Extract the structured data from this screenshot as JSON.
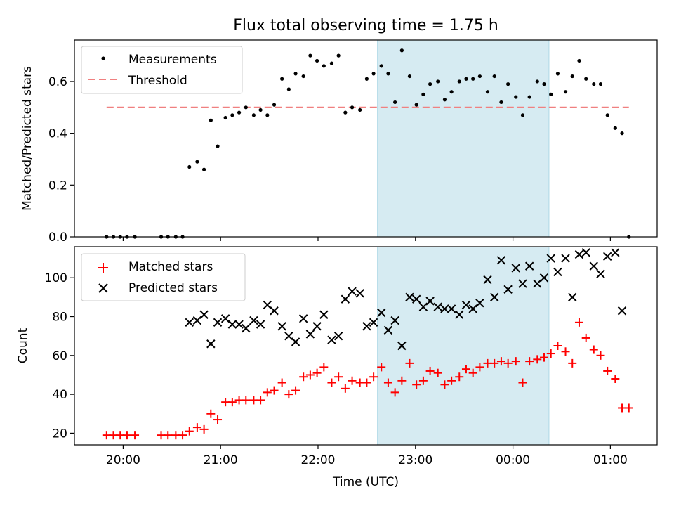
{
  "chart_data": [
    {
      "type": "scatter",
      "title": "Flux total observing time = 1.75 h",
      "ylabel": "Matched/Predicted stars",
      "xlabel": "",
      "ylim": [
        0,
        0.76
      ],
      "yticks": [
        "0.0",
        "0.2",
        "0.4",
        "0.6"
      ],
      "legend": {
        "placement": "top-left",
        "entries": [
          "Measurements",
          "Threshold"
        ]
      },
      "threshold": {
        "name": "Threshold",
        "value": 0.5,
        "color": "#f08080"
      },
      "series": [
        {
          "name": "Measurements",
          "color": "#000000",
          "points": [
            [
              1.33,
              0.0
            ],
            [
              1.4,
              0.0
            ],
            [
              1.47,
              0.0
            ],
            [
              1.54,
              0.0
            ],
            [
              1.62,
              0.0
            ],
            [
              1.89,
              0.0
            ],
            [
              1.96,
              0.0
            ],
            [
              2.04,
              0.0
            ],
            [
              2.11,
              0.0
            ],
            [
              2.18,
              0.27
            ],
            [
              2.26,
              0.29
            ],
            [
              2.33,
              0.26
            ],
            [
              2.4,
              0.45
            ],
            [
              2.47,
              0.35
            ],
            [
              2.55,
              0.46
            ],
            [
              2.62,
              0.47
            ],
            [
              2.69,
              0.48
            ],
            [
              2.76,
              0.5
            ],
            [
              2.84,
              0.47
            ],
            [
              2.91,
              0.49
            ],
            [
              2.98,
              0.47
            ],
            [
              3.05,
              0.51
            ],
            [
              3.13,
              0.61
            ],
            [
              3.2,
              0.57
            ],
            [
              3.27,
              0.63
            ],
            [
              3.35,
              0.62
            ],
            [
              3.42,
              0.7
            ],
            [
              3.49,
              0.68
            ],
            [
              3.56,
              0.66
            ],
            [
              3.64,
              0.67
            ],
            [
              3.71,
              0.7
            ],
            [
              3.78,
              0.48
            ],
            [
              3.85,
              0.5
            ],
            [
              3.93,
              0.49
            ],
            [
              4.0,
              0.61
            ],
            [
              4.07,
              0.63
            ],
            [
              4.15,
              0.66
            ],
            [
              4.22,
              0.63
            ],
            [
              4.29,
              0.52
            ],
            [
              4.36,
              0.72
            ],
            [
              4.44,
              0.62
            ],
            [
              4.51,
              0.51
            ],
            [
              4.58,
              0.55
            ],
            [
              4.65,
              0.59
            ],
            [
              4.73,
              0.6
            ],
            [
              4.8,
              0.53
            ],
            [
              4.87,
              0.56
            ],
            [
              4.95,
              0.6
            ],
            [
              5.02,
              0.61
            ],
            [
              5.09,
              0.61
            ],
            [
              5.16,
              0.62
            ],
            [
              5.24,
              0.56
            ],
            [
              5.31,
              0.62
            ],
            [
              5.38,
              0.52
            ],
            [
              5.45,
              0.59
            ],
            [
              5.53,
              0.54
            ],
            [
              5.6,
              0.47
            ],
            [
              5.67,
              0.54
            ],
            [
              5.75,
              0.6
            ],
            [
              5.82,
              0.59
            ],
            [
              5.89,
              0.55
            ],
            [
              5.96,
              0.63
            ],
            [
              6.04,
              0.56
            ],
            [
              6.11,
              0.62
            ],
            [
              6.18,
              0.68
            ],
            [
              6.25,
              0.61
            ],
            [
              6.33,
              0.59
            ],
            [
              6.4,
              0.59
            ],
            [
              6.47,
              0.47
            ],
            [
              6.55,
              0.42
            ],
            [
              6.62,
              0.4
            ],
            [
              6.69,
              0.0
            ]
          ]
        }
      ]
    },
    {
      "type": "scatter",
      "title": "",
      "ylabel": "Count",
      "xlabel": "Time (UTC)",
      "ylim": [
        14,
        116
      ],
      "yticks": [
        "20",
        "40",
        "60",
        "80",
        "100"
      ],
      "xticks": [
        "20:00",
        "21:00",
        "22:00",
        "23:00",
        "00:00",
        "01:00"
      ],
      "legend": {
        "placement": "top-left",
        "entries": [
          "Matched stars",
          "Predicted stars"
        ]
      },
      "series": [
        {
          "name": "Matched stars",
          "color": "#ff0000",
          "marker": "plus",
          "points": [
            [
              1.33,
              19
            ],
            [
              1.4,
              19
            ],
            [
              1.47,
              19
            ],
            [
              1.54,
              19
            ],
            [
              1.62,
              19
            ],
            [
              1.89,
              19
            ],
            [
              1.96,
              19
            ],
            [
              2.04,
              19
            ],
            [
              2.11,
              19
            ],
            [
              2.18,
              21
            ],
            [
              2.26,
              23
            ],
            [
              2.33,
              22
            ],
            [
              2.4,
              30
            ],
            [
              2.47,
              27
            ],
            [
              2.55,
              36
            ],
            [
              2.62,
              36
            ],
            [
              2.69,
              37
            ],
            [
              2.76,
              37
            ],
            [
              2.84,
              37
            ],
            [
              2.91,
              37
            ],
            [
              2.98,
              41
            ],
            [
              3.05,
              42
            ],
            [
              3.13,
              46
            ],
            [
              3.2,
              40
            ],
            [
              3.27,
              42
            ],
            [
              3.35,
              49
            ],
            [
              3.42,
              50
            ],
            [
              3.49,
              51
            ],
            [
              3.56,
              54
            ],
            [
              3.64,
              46
            ],
            [
              3.71,
              49
            ],
            [
              3.78,
              43
            ],
            [
              3.85,
              47
            ],
            [
              3.93,
              46
            ],
            [
              4.0,
              46
            ],
            [
              4.07,
              49
            ],
            [
              4.15,
              54
            ],
            [
              4.22,
              46
            ],
            [
              4.29,
              41
            ],
            [
              4.36,
              47
            ],
            [
              4.44,
              56
            ],
            [
              4.51,
              45
            ],
            [
              4.58,
              47
            ],
            [
              4.65,
              52
            ],
            [
              4.73,
              51
            ],
            [
              4.8,
              45
            ],
            [
              4.87,
              47
            ],
            [
              4.95,
              49
            ],
            [
              5.02,
              53
            ],
            [
              5.09,
              51
            ],
            [
              5.16,
              54
            ],
            [
              5.24,
              56
            ],
            [
              5.31,
              56
            ],
            [
              5.38,
              57
            ],
            [
              5.45,
              56
            ],
            [
              5.53,
              57
            ],
            [
              5.6,
              46
            ],
            [
              5.67,
              57
            ],
            [
              5.75,
              58
            ],
            [
              5.82,
              59
            ],
            [
              5.89,
              61
            ],
            [
              5.96,
              65
            ],
            [
              6.04,
              62
            ],
            [
              6.11,
              56
            ],
            [
              6.18,
              77
            ],
            [
              6.25,
              69
            ],
            [
              6.33,
              63
            ],
            [
              6.4,
              60
            ],
            [
              6.47,
              52
            ],
            [
              6.55,
              48
            ],
            [
              6.62,
              33
            ],
            [
              6.69,
              33
            ]
          ]
        },
        {
          "name": "Predicted stars",
          "color": "#000000",
          "marker": "x",
          "points": [
            [
              2.18,
              77
            ],
            [
              2.26,
              78
            ],
            [
              2.33,
              81
            ],
            [
              2.4,
              66
            ],
            [
              2.47,
              77
            ],
            [
              2.55,
              79
            ],
            [
              2.62,
              76
            ],
            [
              2.69,
              76
            ],
            [
              2.76,
              74
            ],
            [
              2.84,
              78
            ],
            [
              2.91,
              76
            ],
            [
              2.98,
              86
            ],
            [
              3.05,
              83
            ],
            [
              3.13,
              75
            ],
            [
              3.2,
              70
            ],
            [
              3.27,
              67
            ],
            [
              3.35,
              79
            ],
            [
              3.42,
              71
            ],
            [
              3.49,
              75
            ],
            [
              3.56,
              81
            ],
            [
              3.64,
              68
            ],
            [
              3.71,
              70
            ],
            [
              3.78,
              89
            ],
            [
              3.85,
              93
            ],
            [
              3.93,
              92
            ],
            [
              4.0,
              75
            ],
            [
              4.07,
              77
            ],
            [
              4.15,
              82
            ],
            [
              4.22,
              73
            ],
            [
              4.29,
              78
            ],
            [
              4.36,
              65
            ],
            [
              4.44,
              90
            ],
            [
              4.51,
              89
            ],
            [
              4.58,
              85
            ],
            [
              4.65,
              88
            ],
            [
              4.73,
              85
            ],
            [
              4.8,
              84
            ],
            [
              4.87,
              84
            ],
            [
              4.95,
              81
            ],
            [
              5.02,
              86
            ],
            [
              5.09,
              84
            ],
            [
              5.16,
              87
            ],
            [
              5.24,
              99
            ],
            [
              5.31,
              90
            ],
            [
              5.38,
              109
            ],
            [
              5.45,
              94
            ],
            [
              5.53,
              105
            ],
            [
              5.6,
              97
            ],
            [
              5.67,
              106
            ],
            [
              5.75,
              97
            ],
            [
              5.82,
              100
            ],
            [
              5.89,
              110
            ],
            [
              5.96,
              103
            ],
            [
              6.04,
              110
            ],
            [
              6.11,
              90
            ],
            [
              6.18,
              112
            ],
            [
              6.25,
              113
            ],
            [
              6.33,
              106
            ],
            [
              6.4,
              102
            ],
            [
              6.47,
              111
            ],
            [
              6.55,
              113
            ],
            [
              6.62,
              83
            ]
          ]
        }
      ]
    }
  ],
  "shared_x": {
    "range": [
      1.0,
      6.98
    ],
    "tick_values": [
      1.5,
      2.5,
      3.5,
      4.5,
      5.5,
      6.5
    ],
    "highlight": {
      "start": 4.11,
      "end": 5.87,
      "color": "#add8e6"
    }
  }
}
